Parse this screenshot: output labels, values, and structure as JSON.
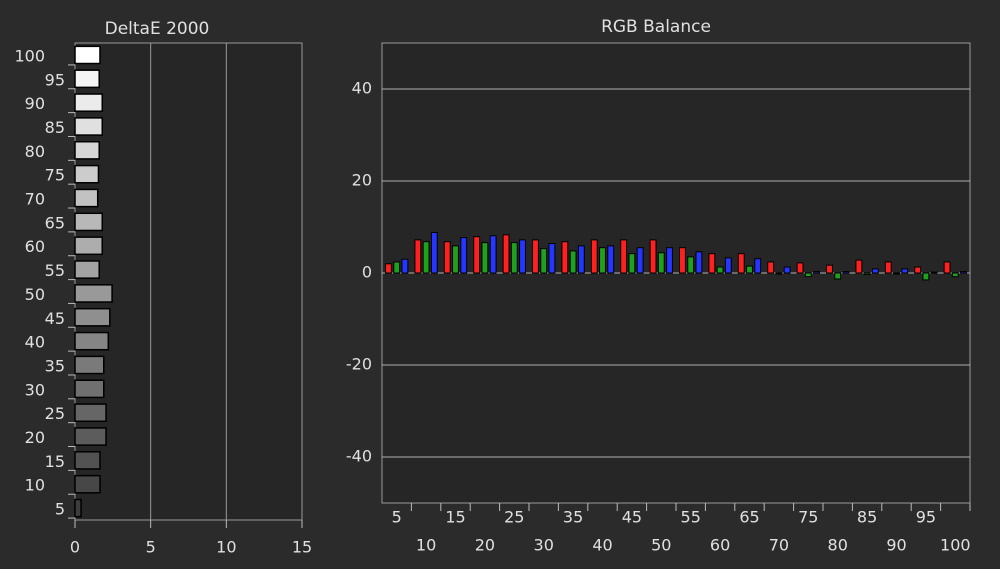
{
  "chart_data": [
    {
      "type": "bar",
      "horizontal": true,
      "title": "DeltaE 2000",
      "categories": [
        "100",
        "95",
        "90",
        "85",
        "80",
        "75",
        "70",
        "65",
        "60",
        "55",
        "50",
        "45",
        "40",
        "35",
        "30",
        "25",
        "20",
        "15",
        "10",
        "5"
      ],
      "values": [
        1.65,
        1.6,
        1.8,
        1.8,
        1.6,
        1.55,
        1.5,
        1.8,
        1.8,
        1.6,
        2.45,
        2.3,
        2.2,
        1.9,
        1.9,
        2.05,
        2.05,
        1.65,
        1.65,
        0.4
      ],
      "colors": [
        "#ffffff",
        "#f4f4f4",
        "#ebebeb",
        "#e0e0e0",
        "#d6d6d6",
        "#cccccc",
        "#c2c2c2",
        "#b8b8b8",
        "#adadad",
        "#a3a3a3",
        "#999999",
        "#8f8f8f",
        "#858585",
        "#7a7a7a",
        "#707070",
        "#666666",
        "#5c5c5c",
        "#525252",
        "#474747",
        "#3d3d3d"
      ],
      "xlim": [
        0,
        15
      ],
      "xticks": [
        0,
        5,
        10,
        15
      ],
      "grid": true
    },
    {
      "type": "grouped-bar",
      "title": "RGB Balance",
      "categories": [
        "5",
        "10",
        "15",
        "20",
        "25",
        "30",
        "35",
        "40",
        "45",
        "50",
        "55",
        "60",
        "65",
        "70",
        "75",
        "80",
        "85",
        "90",
        "95",
        "100"
      ],
      "series": [
        {
          "name": "Red",
          "color": "#ff2020",
          "values": [
            2,
            7.2,
            6.8,
            7.9,
            8.3,
            7.2,
            6.8,
            7.2,
            7.2,
            7.2,
            5.5,
            4.2,
            4.2,
            2.4,
            2.2,
            1.7,
            2.8,
            2.4,
            1.3,
            2.4
          ]
        },
        {
          "name": "Green",
          "color": "#1fa01f",
          "values": [
            2.4,
            6.8,
            5.9,
            6.6,
            6.6,
            5.3,
            4.8,
            5.5,
            4.2,
            4.4,
            3.5,
            1.3,
            1.5,
            0,
            -0.8,
            -1.3,
            -0.3,
            -0.2,
            -1.5,
            -0.8
          ]
        },
        {
          "name": "Blue",
          "color": "#2436ff",
          "values": [
            3,
            8.8,
            7.7,
            8.1,
            7.2,
            6.4,
            5.9,
            5.9,
            5.5,
            5.5,
            4.6,
            3.3,
            3.1,
            1.3,
            0.3,
            0.3,
            0.9,
            0.9,
            0.2,
            0.3
          ]
        }
      ],
      "ylim": [
        -50,
        50
      ],
      "yticks": [
        -40,
        -20,
        0,
        20,
        40
      ],
      "grid": true
    }
  ]
}
